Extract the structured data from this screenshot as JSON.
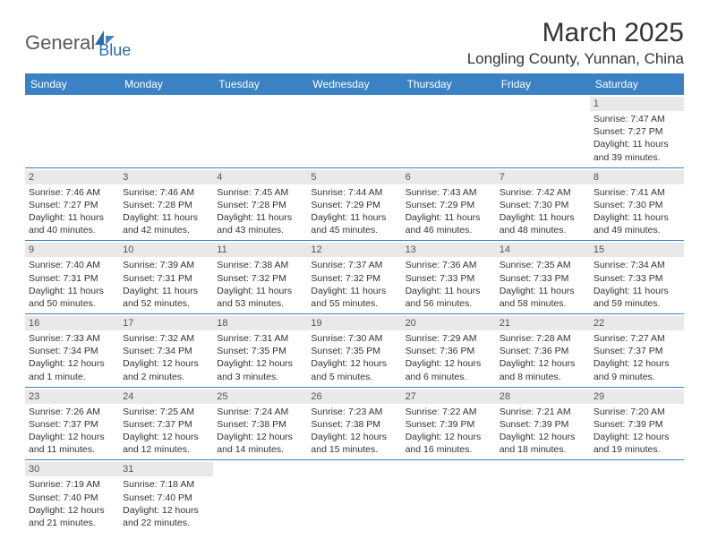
{
  "logo": {
    "part1": "General",
    "part2": "Blue"
  },
  "title": "March 2025",
  "location": "Longling County, Yunnan, China",
  "colors": {
    "header_bg": "#3b82c4",
    "header_text": "#ffffff",
    "daynum_bg": "#e9e9e9",
    "border": "#3b82c4",
    "logo_gray": "#5a5a5a",
    "logo_blue": "#2b6cb0"
  },
  "weekdays": [
    "Sunday",
    "Monday",
    "Tuesday",
    "Wednesday",
    "Thursday",
    "Friday",
    "Saturday"
  ],
  "weeks": [
    [
      {
        "day": null
      },
      {
        "day": null
      },
      {
        "day": null
      },
      {
        "day": null
      },
      {
        "day": null
      },
      {
        "day": null
      },
      {
        "day": 1,
        "sunrise": "Sunrise: 7:47 AM",
        "sunset": "Sunset: 7:27 PM",
        "daylight1": "Daylight: 11 hours",
        "daylight2": "and 39 minutes."
      }
    ],
    [
      {
        "day": 2,
        "sunrise": "Sunrise: 7:46 AM",
        "sunset": "Sunset: 7:27 PM",
        "daylight1": "Daylight: 11 hours",
        "daylight2": "and 40 minutes."
      },
      {
        "day": 3,
        "sunrise": "Sunrise: 7:46 AM",
        "sunset": "Sunset: 7:28 PM",
        "daylight1": "Daylight: 11 hours",
        "daylight2": "and 42 minutes."
      },
      {
        "day": 4,
        "sunrise": "Sunrise: 7:45 AM",
        "sunset": "Sunset: 7:28 PM",
        "daylight1": "Daylight: 11 hours",
        "daylight2": "and 43 minutes."
      },
      {
        "day": 5,
        "sunrise": "Sunrise: 7:44 AM",
        "sunset": "Sunset: 7:29 PM",
        "daylight1": "Daylight: 11 hours",
        "daylight2": "and 45 minutes."
      },
      {
        "day": 6,
        "sunrise": "Sunrise: 7:43 AM",
        "sunset": "Sunset: 7:29 PM",
        "daylight1": "Daylight: 11 hours",
        "daylight2": "and 46 minutes."
      },
      {
        "day": 7,
        "sunrise": "Sunrise: 7:42 AM",
        "sunset": "Sunset: 7:30 PM",
        "daylight1": "Daylight: 11 hours",
        "daylight2": "and 48 minutes."
      },
      {
        "day": 8,
        "sunrise": "Sunrise: 7:41 AM",
        "sunset": "Sunset: 7:30 PM",
        "daylight1": "Daylight: 11 hours",
        "daylight2": "and 49 minutes."
      }
    ],
    [
      {
        "day": 9,
        "sunrise": "Sunrise: 7:40 AM",
        "sunset": "Sunset: 7:31 PM",
        "daylight1": "Daylight: 11 hours",
        "daylight2": "and 50 minutes."
      },
      {
        "day": 10,
        "sunrise": "Sunrise: 7:39 AM",
        "sunset": "Sunset: 7:31 PM",
        "daylight1": "Daylight: 11 hours",
        "daylight2": "and 52 minutes."
      },
      {
        "day": 11,
        "sunrise": "Sunrise: 7:38 AM",
        "sunset": "Sunset: 7:32 PM",
        "daylight1": "Daylight: 11 hours",
        "daylight2": "and 53 minutes."
      },
      {
        "day": 12,
        "sunrise": "Sunrise: 7:37 AM",
        "sunset": "Sunset: 7:32 PM",
        "daylight1": "Daylight: 11 hours",
        "daylight2": "and 55 minutes."
      },
      {
        "day": 13,
        "sunrise": "Sunrise: 7:36 AM",
        "sunset": "Sunset: 7:33 PM",
        "daylight1": "Daylight: 11 hours",
        "daylight2": "and 56 minutes."
      },
      {
        "day": 14,
        "sunrise": "Sunrise: 7:35 AM",
        "sunset": "Sunset: 7:33 PM",
        "daylight1": "Daylight: 11 hours",
        "daylight2": "and 58 minutes."
      },
      {
        "day": 15,
        "sunrise": "Sunrise: 7:34 AM",
        "sunset": "Sunset: 7:33 PM",
        "daylight1": "Daylight: 11 hours",
        "daylight2": "and 59 minutes."
      }
    ],
    [
      {
        "day": 16,
        "sunrise": "Sunrise: 7:33 AM",
        "sunset": "Sunset: 7:34 PM",
        "daylight1": "Daylight: 12 hours",
        "daylight2": "and 1 minute."
      },
      {
        "day": 17,
        "sunrise": "Sunrise: 7:32 AM",
        "sunset": "Sunset: 7:34 PM",
        "daylight1": "Daylight: 12 hours",
        "daylight2": "and 2 minutes."
      },
      {
        "day": 18,
        "sunrise": "Sunrise: 7:31 AM",
        "sunset": "Sunset: 7:35 PM",
        "daylight1": "Daylight: 12 hours",
        "daylight2": "and 3 minutes."
      },
      {
        "day": 19,
        "sunrise": "Sunrise: 7:30 AM",
        "sunset": "Sunset: 7:35 PM",
        "daylight1": "Daylight: 12 hours",
        "daylight2": "and 5 minutes."
      },
      {
        "day": 20,
        "sunrise": "Sunrise: 7:29 AM",
        "sunset": "Sunset: 7:36 PM",
        "daylight1": "Daylight: 12 hours",
        "daylight2": "and 6 minutes."
      },
      {
        "day": 21,
        "sunrise": "Sunrise: 7:28 AM",
        "sunset": "Sunset: 7:36 PM",
        "daylight1": "Daylight: 12 hours",
        "daylight2": "and 8 minutes."
      },
      {
        "day": 22,
        "sunrise": "Sunrise: 7:27 AM",
        "sunset": "Sunset: 7:37 PM",
        "daylight1": "Daylight: 12 hours",
        "daylight2": "and 9 minutes."
      }
    ],
    [
      {
        "day": 23,
        "sunrise": "Sunrise: 7:26 AM",
        "sunset": "Sunset: 7:37 PM",
        "daylight1": "Daylight: 12 hours",
        "daylight2": "and 11 minutes."
      },
      {
        "day": 24,
        "sunrise": "Sunrise: 7:25 AM",
        "sunset": "Sunset: 7:37 PM",
        "daylight1": "Daylight: 12 hours",
        "daylight2": "and 12 minutes."
      },
      {
        "day": 25,
        "sunrise": "Sunrise: 7:24 AM",
        "sunset": "Sunset: 7:38 PM",
        "daylight1": "Daylight: 12 hours",
        "daylight2": "and 14 minutes."
      },
      {
        "day": 26,
        "sunrise": "Sunrise: 7:23 AM",
        "sunset": "Sunset: 7:38 PM",
        "daylight1": "Daylight: 12 hours",
        "daylight2": "and 15 minutes."
      },
      {
        "day": 27,
        "sunrise": "Sunrise: 7:22 AM",
        "sunset": "Sunset: 7:39 PM",
        "daylight1": "Daylight: 12 hours",
        "daylight2": "and 16 minutes."
      },
      {
        "day": 28,
        "sunrise": "Sunrise: 7:21 AM",
        "sunset": "Sunset: 7:39 PM",
        "daylight1": "Daylight: 12 hours",
        "daylight2": "and 18 minutes."
      },
      {
        "day": 29,
        "sunrise": "Sunrise: 7:20 AM",
        "sunset": "Sunset: 7:39 PM",
        "daylight1": "Daylight: 12 hours",
        "daylight2": "and 19 minutes."
      }
    ],
    [
      {
        "day": 30,
        "sunrise": "Sunrise: 7:19 AM",
        "sunset": "Sunset: 7:40 PM",
        "daylight1": "Daylight: 12 hours",
        "daylight2": "and 21 minutes."
      },
      {
        "day": 31,
        "sunrise": "Sunrise: 7:18 AM",
        "sunset": "Sunset: 7:40 PM",
        "daylight1": "Daylight: 12 hours",
        "daylight2": "and 22 minutes."
      },
      {
        "day": null
      },
      {
        "day": null
      },
      {
        "day": null
      },
      {
        "day": null
      },
      {
        "day": null
      }
    ]
  ]
}
